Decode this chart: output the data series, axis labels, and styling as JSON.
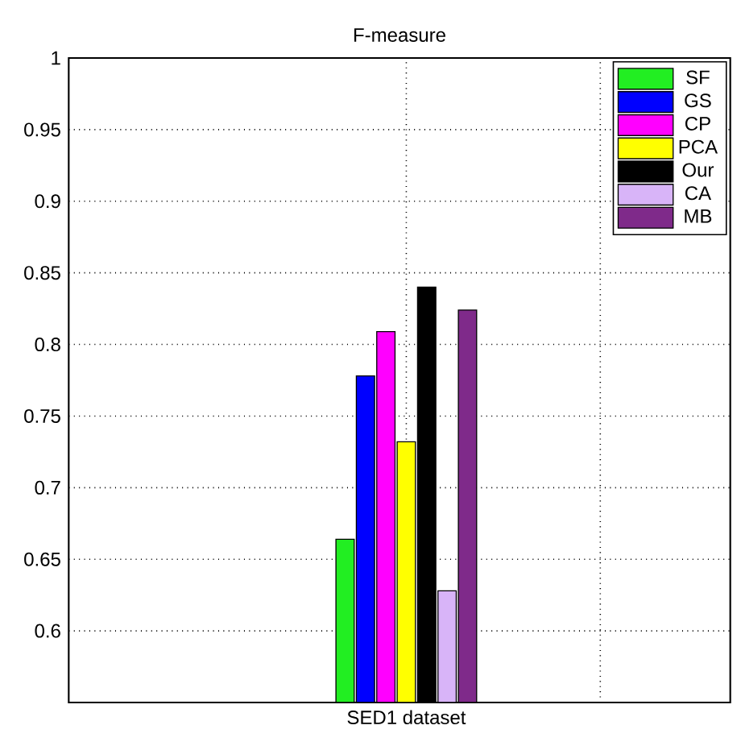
{
  "chart_data": {
    "type": "bar",
    "title": "F-measure",
    "categories": [
      "SED1 dataset"
    ],
    "series": [
      {
        "name": "SF",
        "color": "#22ee22",
        "values": [
          0.664
        ]
      },
      {
        "name": "GS",
        "color": "#0000ff",
        "values": [
          0.778
        ]
      },
      {
        "name": "CP",
        "color": "#ff00ff",
        "values": [
          0.809
        ]
      },
      {
        "name": "PCA",
        "color": "#ffff00",
        "values": [
          0.732
        ]
      },
      {
        "name": "Our",
        "color": "#000000",
        "values": [
          0.84
        ]
      },
      {
        "name": "CA",
        "color": "#d8b4f8",
        "values": [
          0.628
        ]
      },
      {
        "name": "MB",
        "color": "#7f2a8a",
        "values": [
          0.824
        ]
      }
    ],
    "ylim": [
      0.55,
      1
    ],
    "yticks": [
      0.6,
      0.65,
      0.7,
      0.75,
      0.8,
      0.85,
      0.9,
      0.95,
      1
    ],
    "grid": true,
    "legend": "top right"
  }
}
